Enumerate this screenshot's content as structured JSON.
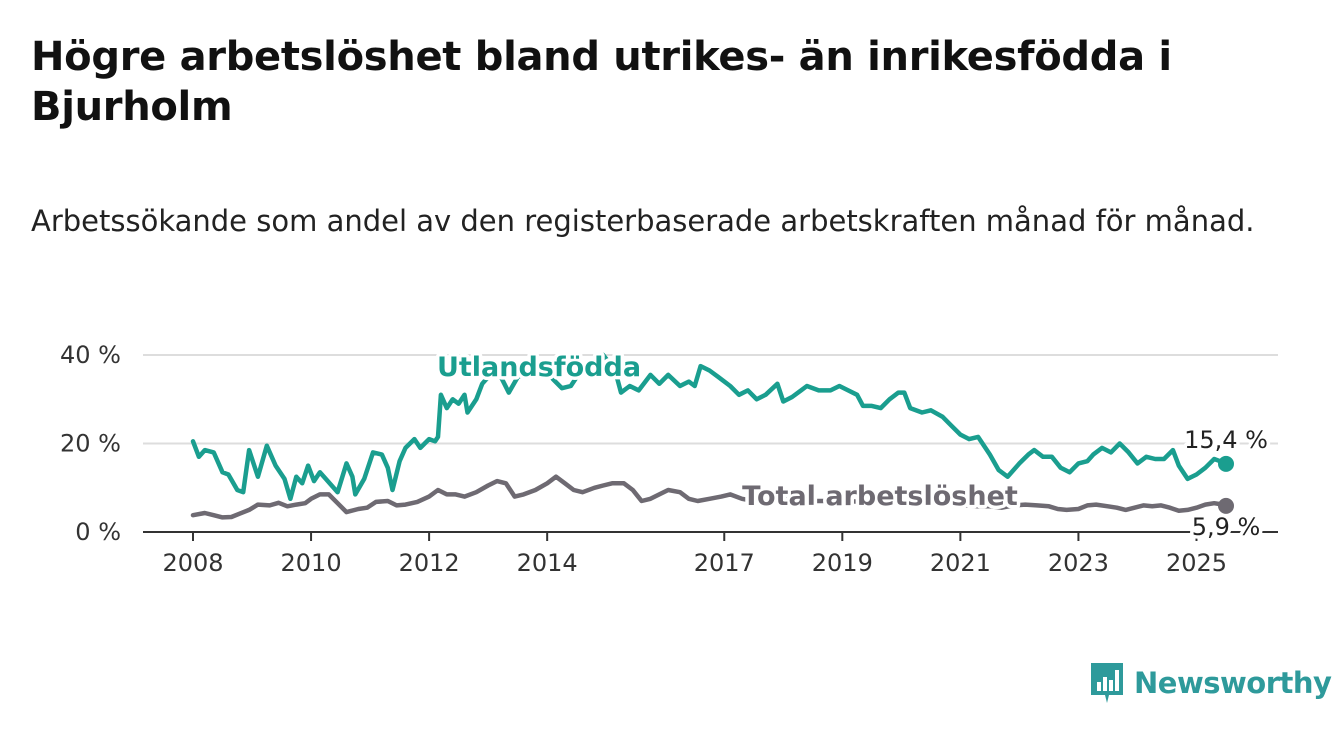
{
  "title": "Högre arbetslöshet bland utrikes- än inrikesfödda i Bjurholm",
  "subtitle": "Arbetssökande som andel av den registerbaserade arbetskraften månad för månad.",
  "brand": "Newsworthy",
  "colors": {
    "foreign": "#1a9e8f",
    "total": "#6e6a72",
    "grid": "#dddddd",
    "axis": "#333333",
    "brand": "#2e9a9b"
  },
  "chart_data": {
    "type": "line",
    "ylim": [
      0,
      40
    ],
    "xlim": [
      2008,
      2025.5
    ],
    "y_ticks": [
      {
        "value": 0,
        "label": "0 %"
      },
      {
        "value": 20,
        "label": "20 %"
      },
      {
        "value": 40,
        "label": "40 %"
      }
    ],
    "x_ticks": [
      {
        "value": 2008,
        "label": "2008"
      },
      {
        "value": 2010,
        "label": "2010"
      },
      {
        "value": 2012,
        "label": "2012"
      },
      {
        "value": 2014,
        "label": "2014"
      },
      {
        "value": 2017,
        "label": "2017"
      },
      {
        "value": 2019,
        "label": "2019"
      },
      {
        "value": 2021,
        "label": "2021"
      },
      {
        "value": 2023,
        "label": "2023"
      },
      {
        "value": 2025,
        "label": "2025"
      }
    ],
    "grid": true,
    "series": [
      {
        "name": "Utlandsfödda",
        "end_label": "15,4 %",
        "points": [
          [
            2008.0,
            20.5
          ],
          [
            2008.1,
            17.0
          ],
          [
            2008.2,
            18.5
          ],
          [
            2008.35,
            18.0
          ],
          [
            2008.5,
            13.5
          ],
          [
            2008.6,
            13.0
          ],
          [
            2008.75,
            9.5
          ],
          [
            2008.85,
            9.0
          ],
          [
            2008.95,
            18.5
          ],
          [
            2009.1,
            12.5
          ],
          [
            2009.25,
            19.5
          ],
          [
            2009.4,
            15.0
          ],
          [
            2009.55,
            12.0
          ],
          [
            2009.65,
            7.5
          ],
          [
            2009.75,
            12.5
          ],
          [
            2009.85,
            11.0
          ],
          [
            2009.95,
            15.0
          ],
          [
            2010.05,
            11.5
          ],
          [
            2010.15,
            13.5
          ],
          [
            2010.25,
            12.0
          ],
          [
            2010.45,
            9.0
          ],
          [
            2010.6,
            15.5
          ],
          [
            2010.7,
            12.5
          ],
          [
            2010.75,
            8.5
          ],
          [
            2010.9,
            12.0
          ],
          [
            2011.05,
            18.0
          ],
          [
            2011.2,
            17.5
          ],
          [
            2011.3,
            14.5
          ],
          [
            2011.38,
            9.5
          ],
          [
            2011.5,
            16.0
          ],
          [
            2011.6,
            19.0
          ],
          [
            2011.75,
            21.0
          ],
          [
            2011.85,
            19.0
          ],
          [
            2012.0,
            21.0
          ],
          [
            2012.1,
            20.5
          ],
          [
            2012.15,
            21.5
          ],
          [
            2012.2,
            31.0
          ],
          [
            2012.3,
            28.0
          ],
          [
            2012.4,
            30.0
          ],
          [
            2012.5,
            29.0
          ],
          [
            2012.6,
            31.0
          ],
          [
            2012.65,
            27.0
          ],
          [
            2012.8,
            30.0
          ],
          [
            2012.9,
            33.5
          ],
          [
            2013.0,
            35.0
          ],
          [
            2013.2,
            35.5
          ],
          [
            2013.35,
            31.5
          ],
          [
            2013.5,
            35.0
          ],
          [
            2013.7,
            36.5
          ],
          [
            2013.9,
            38.0
          ],
          [
            2014.1,
            34.5
          ],
          [
            2014.25,
            32.5
          ],
          [
            2014.4,
            33.0
          ],
          [
            2014.55,
            36.0
          ],
          [
            2014.75,
            38.5
          ],
          [
            2014.95,
            40.0
          ],
          [
            2015.15,
            36.5
          ],
          [
            2015.25,
            31.5
          ],
          [
            2015.4,
            33.0
          ],
          [
            2015.55,
            32.0
          ],
          [
            2015.75,
            35.5
          ],
          [
            2015.9,
            33.5
          ],
          [
            2016.05,
            35.5
          ],
          [
            2016.25,
            33.0
          ],
          [
            2016.4,
            34.0
          ],
          [
            2016.5,
            33.0
          ],
          [
            2016.6,
            37.5
          ],
          [
            2016.75,
            36.5
          ],
          [
            2016.9,
            35.0
          ],
          [
            2017.1,
            33.0
          ],
          [
            2017.25,
            31.0
          ],
          [
            2017.4,
            32.0
          ],
          [
            2017.55,
            30.0
          ],
          [
            2017.7,
            31.0
          ],
          [
            2017.9,
            33.5
          ],
          [
            2018.0,
            29.5
          ],
          [
            2018.15,
            30.5
          ],
          [
            2018.3,
            32.0
          ],
          [
            2018.4,
            33.0
          ],
          [
            2018.6,
            32.0
          ],
          [
            2018.8,
            32.0
          ],
          [
            2018.95,
            33.0
          ],
          [
            2019.1,
            32.0
          ],
          [
            2019.25,
            31.0
          ],
          [
            2019.35,
            28.5
          ],
          [
            2019.5,
            28.5
          ],
          [
            2019.65,
            28.0
          ],
          [
            2019.8,
            30.0
          ],
          [
            2019.95,
            31.5
          ],
          [
            2020.05,
            31.5
          ],
          [
            2020.15,
            28.0
          ],
          [
            2020.35,
            27.0
          ],
          [
            2020.5,
            27.5
          ],
          [
            2020.7,
            26.0
          ],
          [
            2020.85,
            24.0
          ],
          [
            2021.0,
            22.0
          ],
          [
            2021.15,
            21.0
          ],
          [
            2021.3,
            21.5
          ],
          [
            2021.4,
            19.5
          ],
          [
            2021.5,
            17.5
          ],
          [
            2021.65,
            14.0
          ],
          [
            2021.8,
            12.5
          ],
          [
            2022.0,
            15.5
          ],
          [
            2022.15,
            17.5
          ],
          [
            2022.25,
            18.5
          ],
          [
            2022.4,
            17.0
          ],
          [
            2022.55,
            17.0
          ],
          [
            2022.7,
            14.5
          ],
          [
            2022.85,
            13.5
          ],
          [
            2023.0,
            15.5
          ],
          [
            2023.15,
            16.0
          ],
          [
            2023.25,
            17.5
          ],
          [
            2023.4,
            19.0
          ],
          [
            2023.55,
            18.0
          ],
          [
            2023.7,
            20.0
          ],
          [
            2023.85,
            18.0
          ],
          [
            2024.0,
            15.5
          ],
          [
            2024.15,
            17.0
          ],
          [
            2024.3,
            16.5
          ],
          [
            2024.45,
            16.5
          ],
          [
            2024.6,
            18.5
          ],
          [
            2024.7,
            15.0
          ],
          [
            2024.85,
            12.0
          ],
          [
            2025.0,
            13.0
          ],
          [
            2025.15,
            14.5
          ],
          [
            2025.3,
            16.5
          ],
          [
            2025.4,
            16.0
          ],
          [
            2025.5,
            15.4
          ]
        ]
      },
      {
        "name": "Total arbetslöshet",
        "end_label": "5,9 %",
        "points": [
          [
            2008.0,
            3.8
          ],
          [
            2008.2,
            4.3
          ],
          [
            2008.35,
            3.8
          ],
          [
            2008.5,
            3.3
          ],
          [
            2008.65,
            3.4
          ],
          [
            2008.8,
            4.2
          ],
          [
            2008.95,
            5.0
          ],
          [
            2009.1,
            6.2
          ],
          [
            2009.3,
            6.0
          ],
          [
            2009.45,
            6.6
          ],
          [
            2009.6,
            5.8
          ],
          [
            2009.75,
            6.2
          ],
          [
            2009.9,
            6.5
          ],
          [
            2010.0,
            7.5
          ],
          [
            2010.15,
            8.5
          ],
          [
            2010.3,
            8.5
          ],
          [
            2010.45,
            6.5
          ],
          [
            2010.6,
            4.5
          ],
          [
            2010.8,
            5.2
          ],
          [
            2010.95,
            5.5
          ],
          [
            2011.1,
            6.8
          ],
          [
            2011.3,
            7.0
          ],
          [
            2011.45,
            6.0
          ],
          [
            2011.6,
            6.2
          ],
          [
            2011.8,
            6.8
          ],
          [
            2012.0,
            8.0
          ],
          [
            2012.15,
            9.5
          ],
          [
            2012.3,
            8.5
          ],
          [
            2012.45,
            8.5
          ],
          [
            2012.6,
            8.0
          ],
          [
            2012.8,
            9.0
          ],
          [
            2013.0,
            10.5
          ],
          [
            2013.15,
            11.5
          ],
          [
            2013.3,
            11.0
          ],
          [
            2013.45,
            8.0
          ],
          [
            2013.6,
            8.5
          ],
          [
            2013.8,
            9.5
          ],
          [
            2014.0,
            11.0
          ],
          [
            2014.15,
            12.5
          ],
          [
            2014.3,
            11.0
          ],
          [
            2014.45,
            9.5
          ],
          [
            2014.6,
            9.0
          ],
          [
            2014.8,
            10.0
          ],
          [
            2014.95,
            10.5
          ],
          [
            2015.1,
            11.0
          ],
          [
            2015.3,
            11.0
          ],
          [
            2015.45,
            9.5
          ],
          [
            2015.6,
            7.0
          ],
          [
            2015.75,
            7.5
          ],
          [
            2015.9,
            8.5
          ],
          [
            2016.05,
            9.5
          ],
          [
            2016.25,
            9.0
          ],
          [
            2016.4,
            7.5
          ],
          [
            2016.55,
            7.0
          ],
          [
            2016.75,
            7.5
          ],
          [
            2016.95,
            8.0
          ],
          [
            2017.1,
            8.5
          ],
          [
            2017.3,
            7.5
          ],
          [
            2017.5,
            7.0
          ],
          [
            2017.7,
            7.0
          ],
          [
            2017.9,
            7.2
          ],
          [
            2018.1,
            7.5
          ],
          [
            2018.3,
            7.2
          ],
          [
            2018.5,
            7.0
          ],
          [
            2018.7,
            7.0
          ],
          [
            2018.9,
            7.2
          ],
          [
            2019.1,
            7.0
          ],
          [
            2019.3,
            6.8
          ],
          [
            2019.5,
            6.8
          ],
          [
            2019.7,
            6.5
          ],
          [
            2019.9,
            6.8
          ],
          [
            2020.1,
            7.0
          ],
          [
            2020.3,
            6.8
          ],
          [
            2020.5,
            6.5
          ],
          [
            2020.7,
            6.5
          ],
          [
            2020.9,
            6.2
          ],
          [
            2021.1,
            6.0
          ],
          [
            2021.3,
            5.8
          ],
          [
            2021.5,
            5.8
          ],
          [
            2021.7,
            5.5
          ],
          [
            2021.9,
            6.0
          ],
          [
            2022.1,
            6.2
          ],
          [
            2022.3,
            6.0
          ],
          [
            2022.5,
            5.8
          ],
          [
            2022.65,
            5.2
          ],
          [
            2022.8,
            5.0
          ],
          [
            2023.0,
            5.2
          ],
          [
            2023.15,
            6.0
          ],
          [
            2023.3,
            6.2
          ],
          [
            2023.5,
            5.8
          ],
          [
            2023.65,
            5.5
          ],
          [
            2023.8,
            5.0
          ],
          [
            2023.95,
            5.5
          ],
          [
            2024.1,
            6.0
          ],
          [
            2024.25,
            5.8
          ],
          [
            2024.4,
            6.0
          ],
          [
            2024.55,
            5.5
          ],
          [
            2024.7,
            4.8
          ],
          [
            2024.85,
            5.0
          ],
          [
            2025.0,
            5.5
          ],
          [
            2025.15,
            6.2
          ],
          [
            2025.3,
            6.5
          ],
          [
            2025.4,
            6.3
          ],
          [
            2025.5,
            5.9
          ]
        ]
      }
    ]
  }
}
